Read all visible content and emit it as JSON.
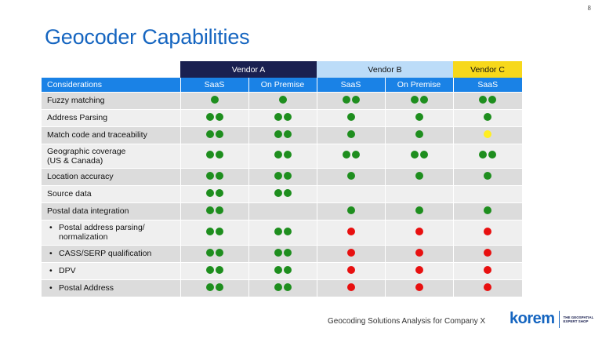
{
  "page_number": "8",
  "title": "Geocoder Capabilities",
  "colors": {
    "green": "#1e8e1e",
    "red": "#e81010",
    "yellow": "#ffee22"
  },
  "vendors": [
    "Vendor A",
    "Vendor B",
    "Vendor C"
  ],
  "columns": [
    "Considerations",
    "SaaS",
    "On Premise",
    "SaaS",
    "On Premise",
    "SaaS"
  ],
  "rows": [
    {
      "label": "Fuzzy matching",
      "sub": false,
      "cells": [
        [
          "green"
        ],
        [
          "green"
        ],
        [
          "green",
          "green"
        ],
        [
          "green",
          "green"
        ],
        [
          "green",
          "green"
        ]
      ]
    },
    {
      "label": "Address Parsing",
      "sub": false,
      "cells": [
        [
          "green",
          "green"
        ],
        [
          "green",
          "green"
        ],
        [
          "green"
        ],
        [
          "green"
        ],
        [
          "green"
        ]
      ]
    },
    {
      "label": "Match code and traceability",
      "sub": false,
      "cells": [
        [
          "green",
          "green"
        ],
        [
          "green",
          "green"
        ],
        [
          "green"
        ],
        [
          "green"
        ],
        [
          "yellow"
        ]
      ]
    },
    {
      "label": "Geographic coverage\n(US & Canada)",
      "sub": false,
      "tall": true,
      "cells": [
        [
          "green",
          "green"
        ],
        [
          "green",
          "green"
        ],
        [
          "green",
          "green"
        ],
        [
          "green",
          "green"
        ],
        [
          "green",
          "green"
        ]
      ]
    },
    {
      "label": "Location accuracy",
      "sub": false,
      "cells": [
        [
          "green",
          "green"
        ],
        [
          "green",
          "green"
        ],
        [
          "green"
        ],
        [
          "green"
        ],
        [
          "green"
        ]
      ]
    },
    {
      "label": "Source data",
      "sub": false,
      "cells": [
        [
          "green",
          "green"
        ],
        [
          "green",
          "green"
        ],
        [],
        [],
        []
      ]
    },
    {
      "label": "Postal data integration",
      "sub": false,
      "cells": [
        [
          "green",
          "green"
        ],
        [],
        [
          "green"
        ],
        [
          "green"
        ],
        [
          "green"
        ]
      ]
    },
    {
      "label": "Postal address parsing/\nnormalization",
      "sub": true,
      "tall": true,
      "cells": [
        [
          "green",
          "green"
        ],
        [
          "green",
          "green"
        ],
        [
          "red"
        ],
        [
          "red"
        ],
        [
          "red"
        ]
      ]
    },
    {
      "label": "CASS/SERP qualification",
      "sub": true,
      "cells": [
        [
          "green",
          "green"
        ],
        [
          "green",
          "green"
        ],
        [
          "red"
        ],
        [
          "red"
        ],
        [
          "red"
        ]
      ]
    },
    {
      "label": "DPV",
      "sub": true,
      "cells": [
        [
          "green",
          "green"
        ],
        [
          "green",
          "green"
        ],
        [
          "red"
        ],
        [
          "red"
        ],
        [
          "red"
        ]
      ]
    },
    {
      "label": "Postal Address",
      "sub": true,
      "cells": [
        [
          "green",
          "green"
        ],
        [
          "green",
          "green"
        ],
        [
          "red"
        ],
        [
          "red"
        ],
        [
          "red"
        ]
      ]
    }
  ],
  "footer": {
    "text": "Geocoding Solutions Analysis for Company X",
    "logo_word": "korem",
    "logo_tagline": "THE GEOSPATIAL EXPERT SHOP"
  }
}
